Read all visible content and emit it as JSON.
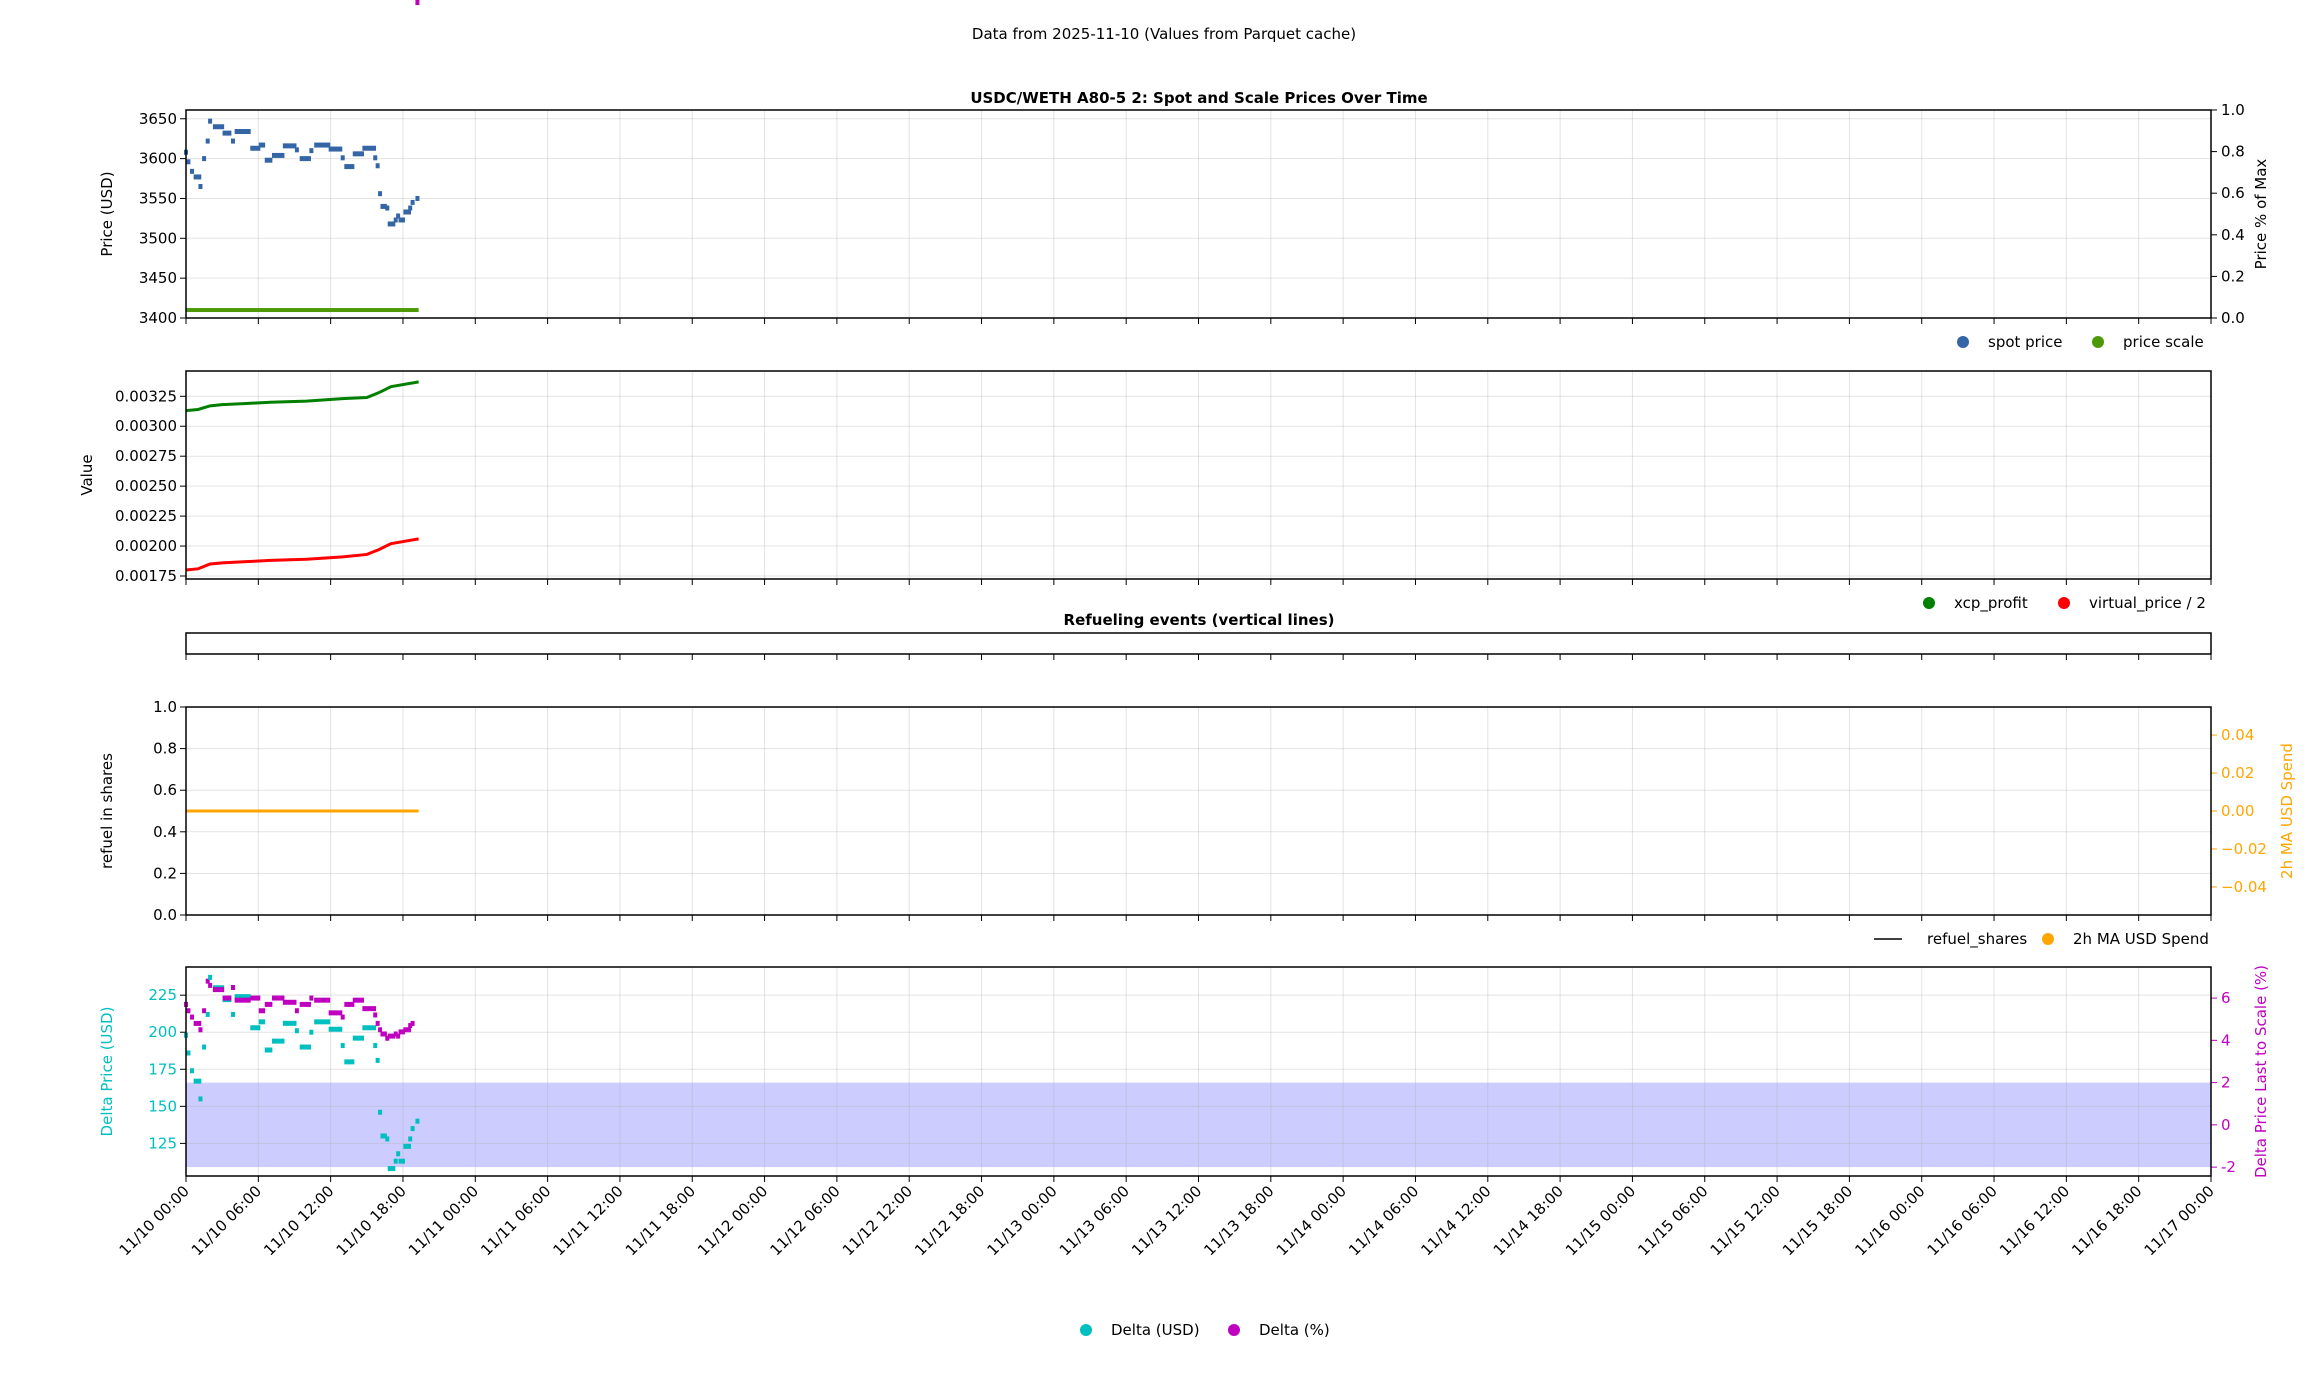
{
  "header": {
    "title": "Data from 2025-11-10 (Values from Parquet cache)"
  },
  "chart_data": [
    {
      "type": "scatter",
      "title": "USDC/WETH A80-5 2: Spot and Scale Prices Over Time",
      "ylabel": "Price (USD)",
      "ylim": [
        3400,
        3661
      ],
      "yticks": [
        3400,
        3450,
        3500,
        3550,
        3600,
        3650
      ],
      "ylabel_right": "Price % of Max",
      "ylim_right": [
        0,
        1.0
      ],
      "yticks_right": [
        "0.0",
        "0.2",
        "0.4",
        "0.6",
        "0.8",
        "1.0"
      ],
      "xlim": [
        "2025-11-10T00:00",
        "2025-11-17T00:00"
      ],
      "grid": true,
      "legend": "below-right",
      "series": [
        {
          "name": "spot price",
          "color": "#3465a4",
          "segments": [
            [
              "2025-11-10T00:00",
              "2025-11-10T00:00",
              3608
            ],
            [
              "2025-11-10T00:12",
              "2025-11-10T00:12",
              3596
            ],
            [
              "2025-11-10T00:30",
              "2025-11-10T00:30",
              3584
            ],
            [
              "2025-11-10T00:48",
              "2025-11-10T01:06",
              3577
            ],
            [
              "2025-11-10T01:12",
              "2025-11-10T01:12",
              3565
            ],
            [
              "2025-11-10T01:30",
              "2025-11-10T01:30",
              3600
            ],
            [
              "2025-11-10T01:48",
              "2025-11-10T01:48",
              3622
            ],
            [
              "2025-11-10T02:00",
              "2025-11-10T02:00",
              3647
            ],
            [
              "2025-11-10T02:24",
              "2025-11-10T03:00",
              3640
            ],
            [
              "2025-11-10T03:12",
              "2025-11-10T03:36",
              3632
            ],
            [
              "2025-11-10T03:54",
              "2025-11-10T03:54",
              3622
            ],
            [
              "2025-11-10T04:12",
              "2025-11-10T05:12",
              3634
            ],
            [
              "2025-11-10T05:30",
              "2025-11-10T06:00",
              3613
            ],
            [
              "2025-11-10T06:12",
              "2025-11-10T06:24",
              3617
            ],
            [
              "2025-11-10T06:42",
              "2025-11-10T07:00",
              3598
            ],
            [
              "2025-11-10T07:18",
              "2025-11-10T08:00",
              3604
            ],
            [
              "2025-11-10T08:12",
              "2025-11-10T09:00",
              3616
            ],
            [
              "2025-11-10T09:12",
              "2025-11-10T09:12",
              3611
            ],
            [
              "2025-11-10T09:36",
              "2025-11-10T10:12",
              3600
            ],
            [
              "2025-11-10T10:24",
              "2025-11-10T10:24",
              3610
            ],
            [
              "2025-11-10T10:48",
              "2025-11-10T11:48",
              3617
            ],
            [
              "2025-11-10T12:00",
              "2025-11-10T12:48",
              3612
            ],
            [
              "2025-11-10T13:00",
              "2025-11-10T13:00",
              3601
            ],
            [
              "2025-11-10T13:18",
              "2025-11-10T13:48",
              3590
            ],
            [
              "2025-11-10T14:00",
              "2025-11-10T14:36",
              3606
            ],
            [
              "2025-11-10T14:48",
              "2025-11-10T15:36",
              3613
            ],
            [
              "2025-11-10T15:42",
              "2025-11-10T15:42",
              3601
            ],
            [
              "2025-11-10T15:54",
              "2025-11-10T15:54",
              3591
            ],
            [
              "2025-11-10T16:06",
              "2025-11-10T16:06",
              3556
            ],
            [
              "2025-11-10T16:18",
              "2025-11-10T16:30",
              3540
            ],
            [
              "2025-11-10T16:42",
              "2025-11-10T16:42",
              3538
            ],
            [
              "2025-11-10T16:54",
              "2025-11-10T17:12",
              3518
            ],
            [
              "2025-11-10T17:24",
              "2025-11-10T17:24",
              3523
            ],
            [
              "2025-11-10T17:36",
              "2025-11-10T17:36",
              3528
            ],
            [
              "2025-11-10T17:48",
              "2025-11-10T18:00",
              3523
            ],
            [
              "2025-11-10T18:12",
              "2025-11-10T18:30",
              3533
            ],
            [
              "2025-11-10T18:36",
              "2025-11-10T18:36",
              3538
            ],
            [
              "2025-11-10T18:48",
              "2025-11-10T18:48",
              3545
            ],
            [
              "2025-11-10T19:12",
              "2025-11-10T19:12",
              3550
            ]
          ]
        },
        {
          "name": "price scale",
          "color": "#4e9a06",
          "segments": [
            [
              "2025-11-10T00:00",
              "2025-11-10T19:18",
              3410
            ]
          ]
        }
      ]
    },
    {
      "type": "scatter",
      "ylabel": "Value",
      "ylim": [
        0.001725,
        0.003461
      ],
      "yticks": [
        "0.00175",
        "0.00200",
        "0.00225",
        "0.00250",
        "0.00275",
        "0.00300",
        "0.00325"
      ],
      "grid": true,
      "legend": "below-right",
      "series": [
        {
          "name": "xcp_profit",
          "color": "#008000",
          "points": [
            [
              "2025-11-10T00:00",
              0.00313
            ],
            [
              "2025-11-10T01:00",
              0.00314
            ],
            [
              "2025-11-10T02:00",
              0.00317
            ],
            [
              "2025-11-10T03:00",
              0.00318
            ],
            [
              "2025-11-10T05:00",
              0.00319
            ],
            [
              "2025-11-10T07:00",
              0.0032
            ],
            [
              "2025-11-10T10:00",
              0.00321
            ],
            [
              "2025-11-10T13:00",
              0.00323
            ],
            [
              "2025-11-10T15:00",
              0.00324
            ],
            [
              "2025-11-10T16:00",
              0.00328
            ],
            [
              "2025-11-10T17:00",
              0.00333
            ],
            [
              "2025-11-10T19:18",
              0.00337
            ]
          ]
        },
        {
          "name": "virtual_price / 2",
          "color": "#ff0000",
          "points": [
            [
              "2025-11-10T00:00",
              0.0018
            ],
            [
              "2025-11-10T01:00",
              0.00181
            ],
            [
              "2025-11-10T02:00",
              0.00185
            ],
            [
              "2025-11-10T03:00",
              0.00186
            ],
            [
              "2025-11-10T05:00",
              0.00187
            ],
            [
              "2025-11-10T07:00",
              0.00188
            ],
            [
              "2025-11-10T10:00",
              0.00189
            ],
            [
              "2025-11-10T13:00",
              0.00191
            ],
            [
              "2025-11-10T15:00",
              0.00193
            ],
            [
              "2025-11-10T16:00",
              0.00197
            ],
            [
              "2025-11-10T17:00",
              0.00202
            ],
            [
              "2025-11-10T19:18",
              0.00206
            ]
          ]
        }
      ]
    },
    {
      "type": "line",
      "title": "Refueling events (vertical lines)",
      "series": []
    },
    {
      "type": "line",
      "ylabel": "refuel in shares",
      "ylim": [
        0,
        1.0
      ],
      "yticks": [
        "0.0",
        "0.2",
        "0.4",
        "0.6",
        "0.8",
        "1.0"
      ],
      "ylabel_right": "2h MA USD Spend",
      "ylim_right": [
        -0.0548,
        0.0548
      ],
      "yticks_right": [
        "−0.04",
        "−0.02",
        "0.00",
        "0.02",
        "0.04"
      ],
      "yticks_right_values": [
        -0.04,
        -0.02,
        0,
        0.02,
        0.04
      ],
      "grid": true,
      "legend": "below-right",
      "series": [
        {
          "name": "refuel_shares",
          "color": "#000000",
          "points": []
        },
        {
          "name": "2h MA USD Spend",
          "color": "#ffa500",
          "axis": "right",
          "points": [
            [
              "2025-11-10T00:00",
              0
            ],
            [
              "2025-11-10T19:18",
              0
            ]
          ]
        }
      ]
    },
    {
      "type": "scatter",
      "ylabel": "Delta Price (USD)",
      "ylim": [
        103,
        244
      ],
      "yticks": [
        125,
        150,
        175,
        200,
        225
      ],
      "ylabel_right": "Delta Price Last to Scale (%)",
      "ylim_right": [
        -2.42,
        7.47
      ],
      "yticks_right": [
        -2,
        0,
        2,
        4,
        6
      ],
      "band": {
        "from": 109,
        "to": 166,
        "color": "#0000ff"
      },
      "grid": true,
      "legend": "below-center",
      "xticks": [
        "11/10 00:00",
        "11/10 06:00",
        "11/10 12:00",
        "11/10 18:00",
        "11/11 00:00",
        "11/11 06:00",
        "11/11 12:00",
        "11/11 18:00",
        "11/12 00:00",
        "11/12 06:00",
        "11/12 12:00",
        "11/12 18:00",
        "11/13 00:00",
        "11/13 06:00",
        "11/13 12:00",
        "11/13 18:00",
        "11/14 00:00",
        "11/14 06:00",
        "11/14 12:00",
        "11/14 18:00",
        "11/15 00:00",
        "11/15 06:00",
        "11/15 12:00",
        "11/15 18:00",
        "11/16 00:00",
        "11/16 06:00",
        "11/16 12:00",
        "11/16 18:00",
        "11/17 00:00"
      ],
      "series": [
        {
          "name": "Delta (USD)",
          "color": "#00bfbf",
          "derived_from": "spot price minus price scale"
        },
        {
          "name": "Delta (%)",
          "color": "#bf00bf",
          "axis": "right",
          "values": [
            5.7,
            5.4,
            5.1,
            4.8,
            4.5,
            5.4,
            6.8,
            6.6,
            6.4,
            6.0,
            6.5,
            5.9,
            6.0,
            5.4,
            5.7,
            6.0,
            5.8,
            5.4,
            5.7,
            6.0,
            5.9,
            5.3,
            5.1,
            5.7,
            5.9,
            5.5,
            5.2,
            4.8,
            4.5,
            4.3,
            4.1,
            4.2,
            4.3,
            4.2,
            4.4,
            4.5,
            4.7,
            4.8
          ]
        }
      ]
    }
  ]
}
